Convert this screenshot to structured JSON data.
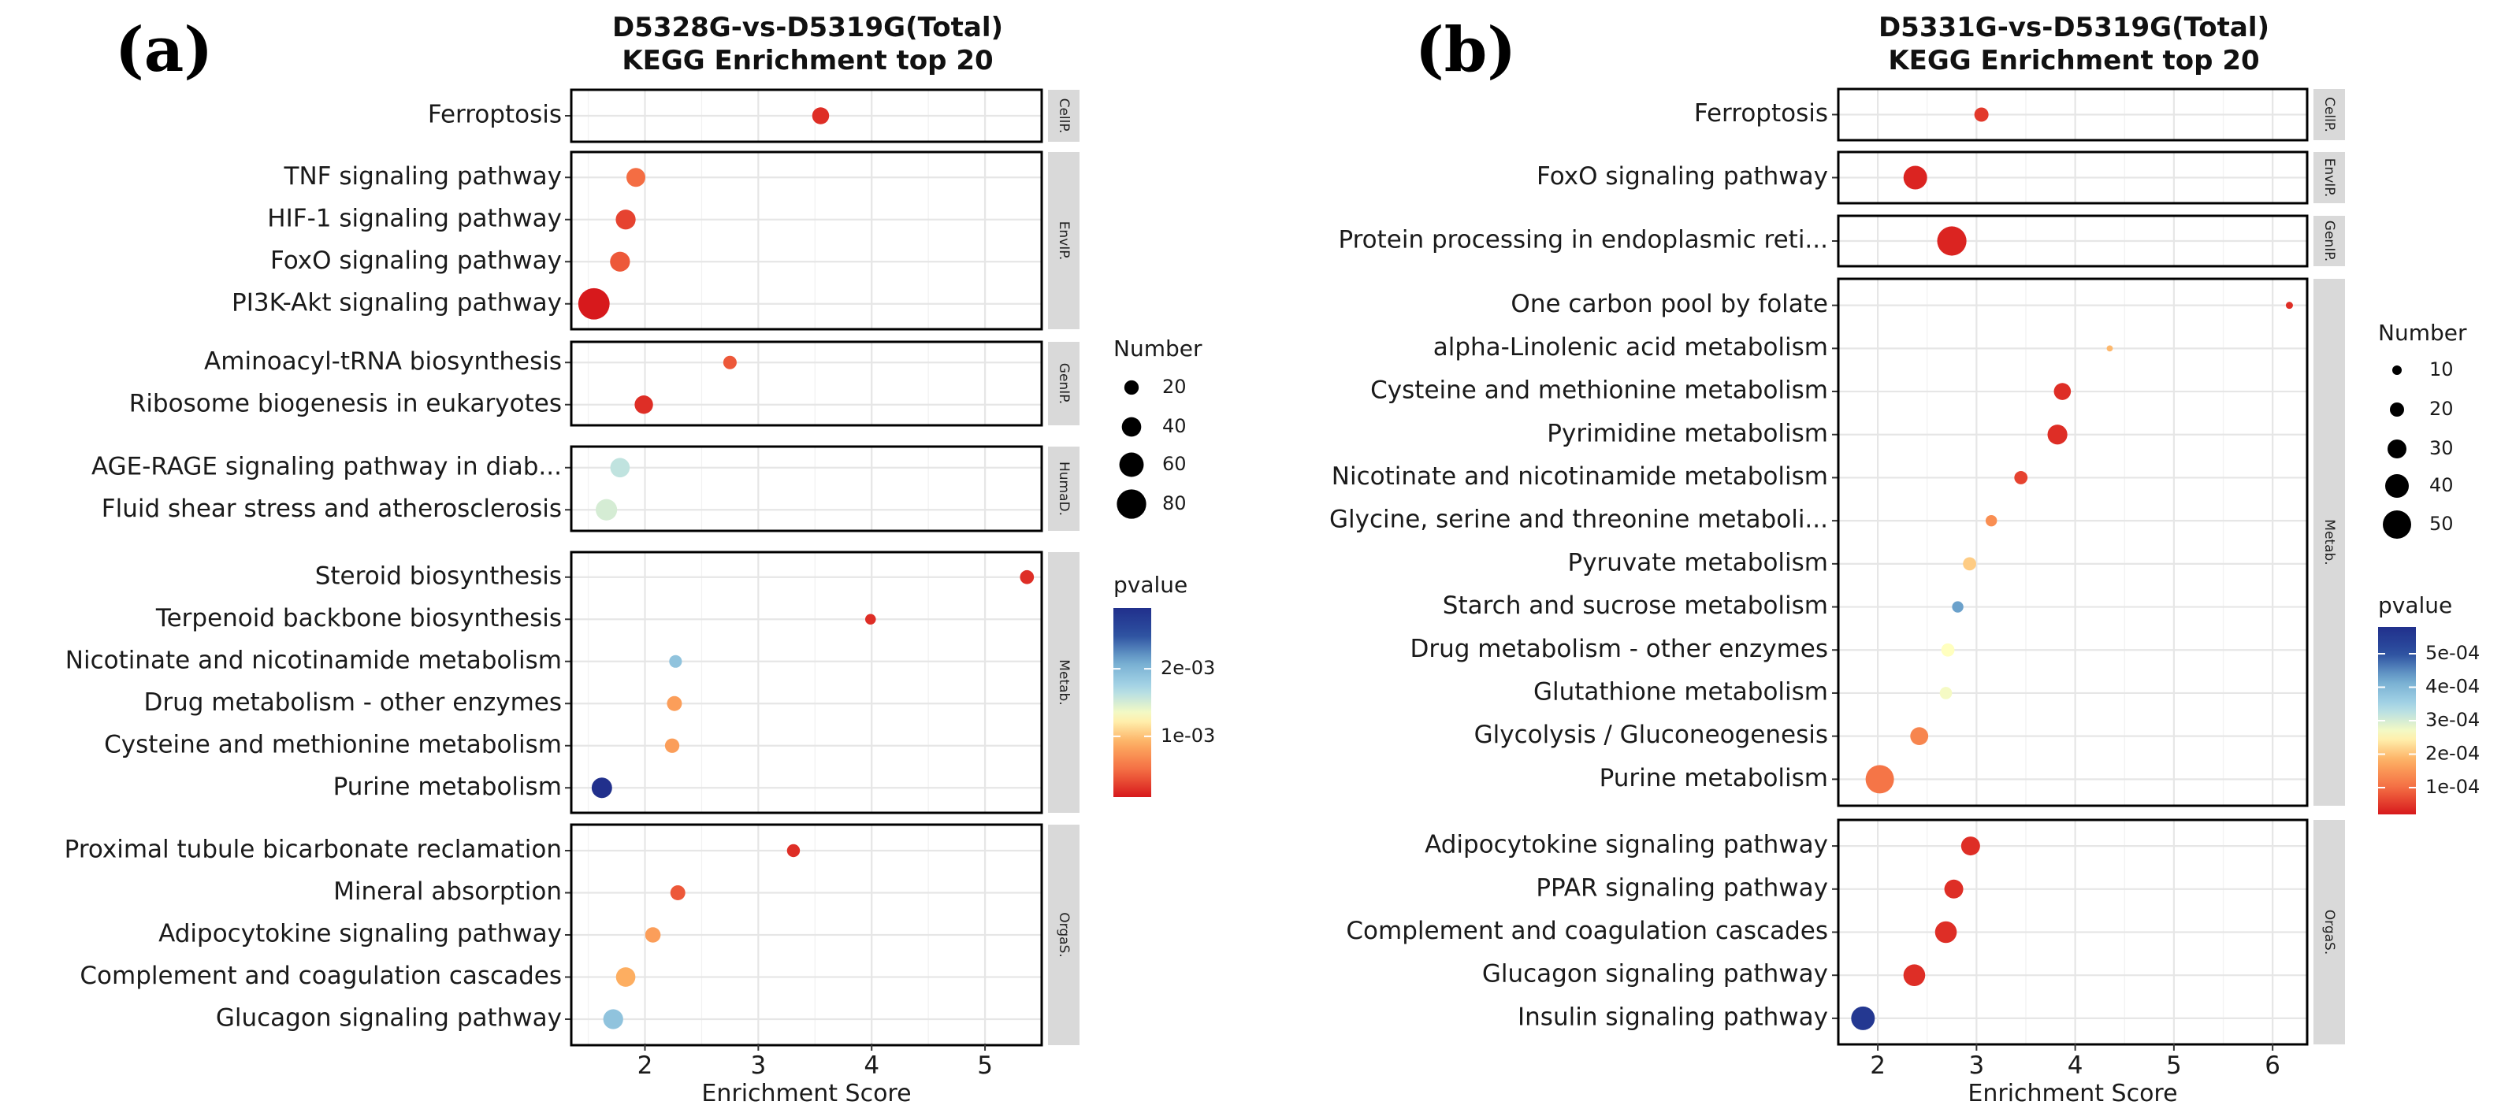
{
  "chart_data": [
    {
      "type": "scatter",
      "panel_label": "(a)",
      "title_line1": "D5328G-vs-D5319G(Total)",
      "title_line2": "KEGG Enrichment top 20",
      "xlabel": "Enrichment Score",
      "xlim": [
        1.35,
        5.5
      ],
      "xticks": [
        2,
        3,
        4,
        5
      ],
      "size_legend_title": "Number",
      "size_legend_values": [
        20,
        40,
        60,
        80
      ],
      "color_legend_title": "pvalue",
      "color_legend_ticks": [
        {
          "value": 0.002,
          "label": "2e-03"
        },
        {
          "value": 0.001,
          "label": "1e-03"
        }
      ],
      "pvalue_range": [
        0.0001,
        0.0029
      ],
      "size_range": [
        5,
        90
      ],
      "groups": [
        {
          "name": "CellP.",
          "terms": [
            {
              "term": "Ferroptosis",
              "x": 3.55,
              "number": 30,
              "pvalue": 0.0002
            }
          ]
        },
        {
          "name": "EnvIP.",
          "terms": [
            {
              "term": "TNF signaling pathway",
              "x": 1.92,
              "number": 38,
              "pvalue": 0.0005
            },
            {
              "term": "HIF-1 signaling pathway",
              "x": 1.83,
              "number": 42,
              "pvalue": 0.0003
            },
            {
              "term": "FoxO signaling pathway",
              "x": 1.78,
              "number": 42,
              "pvalue": 0.0004
            },
            {
              "term": "PI3K-Akt signaling pathway",
              "x": 1.55,
              "number": 88,
              "pvalue": 0.0001
            }
          ]
        },
        {
          "name": "GenIP.",
          "terms": [
            {
              "term": "Aminoacyl-tRNA biosynthesis",
              "x": 2.75,
              "number": 16,
              "pvalue": 0.0004
            },
            {
              "term": "Ribosome biogenesis in eukaryotes",
              "x": 1.99,
              "number": 36,
              "pvalue": 0.0002
            }
          ]
        },
        {
          "name": "HumaD.",
          "terms": [
            {
              "term": "AGE-RAGE signaling pathway in diab...",
              "x": 1.78,
              "number": 40,
              "pvalue": 0.0016
            },
            {
              "term": "Fluid shear stress and atherosclerosis",
              "x": 1.66,
              "number": 48,
              "pvalue": 0.0015
            }
          ]
        },
        {
          "name": "Metab.",
          "terms": [
            {
              "term": "Steroid biosynthesis",
              "x": 5.37,
              "number": 18,
              "pvalue": 0.0002
            },
            {
              "term": "Terpenoid backbone biosynthesis",
              "x": 3.99,
              "number": 5,
              "pvalue": 0.0002
            },
            {
              "term": "Nicotinate and nicotinamide metabolism",
              "x": 2.27,
              "number": 13,
              "pvalue": 0.0019
            },
            {
              "term": "Drug metabolism - other enzymes",
              "x": 2.26,
              "number": 22,
              "pvalue": 0.0008
            },
            {
              "term": "Cysteine and methionine metabolism",
              "x": 2.24,
              "number": 20,
              "pvalue": 0.0008
            },
            {
              "term": "Purine metabolism",
              "x": 1.62,
              "number": 44,
              "pvalue": 0.0029
            }
          ]
        },
        {
          "name": "OrgaS.",
          "terms": [
            {
              "term": "Proximal tubule bicarbonate reclamation",
              "x": 3.31,
              "number": 14,
              "pvalue": 0.0002
            },
            {
              "term": "Mineral absorption",
              "x": 2.29,
              "number": 22,
              "pvalue": 0.0004
            },
            {
              "term": "Adipocytokine signaling pathway",
              "x": 2.07,
              "number": 24,
              "pvalue": 0.0008
            },
            {
              "term": "Complement and coagulation cascades",
              "x": 1.83,
              "number": 40,
              "pvalue": 0.0009
            },
            {
              "term": "Glucagon signaling pathway",
              "x": 1.72,
              "number": 42,
              "pvalue": 0.0019
            }
          ]
        }
      ]
    },
    {
      "type": "scatter",
      "panel_label": "(b)",
      "title_line1": "D5331G-vs-D5319G(Total)",
      "title_line2": "KEGG Enrichment top 20",
      "xlabel": "Enrichment Score",
      "xlim": [
        1.6,
        6.35
      ],
      "xticks": [
        2,
        3,
        4,
        5,
        6
      ],
      "size_legend_title": "Number",
      "size_legend_values": [
        10,
        20,
        30,
        40,
        50
      ],
      "color_legend_title": "pvalue",
      "color_legend_ticks": [
        {
          "value": 0.0005,
          "label": "5e-04"
        },
        {
          "value": 0.0004,
          "label": "4e-04"
        },
        {
          "value": 0.0003,
          "label": "3e-04"
        },
        {
          "value": 0.0002,
          "label": "2e-04"
        },
        {
          "value": 0.0001,
          "label": "1e-04"
        }
      ],
      "pvalue_range": [
        2e-05,
        0.00058
      ],
      "size_range": [
        3,
        55
      ],
      "groups": [
        {
          "name": "CellP.",
          "terms": [
            {
              "term": "Ferroptosis",
              "x": 3.05,
              "number": 20,
              "pvalue": 5e-05
            }
          ]
        },
        {
          "name": "EnvIP.",
          "terms": [
            {
              "term": "FoxO signaling pathway",
              "x": 2.38,
              "number": 40,
              "pvalue": 3e-05
            }
          ]
        },
        {
          "name": "GenIP.",
          "terms": [
            {
              "term": "Protein processing in endoplasmic reti...",
              "x": 2.75,
              "number": 52,
              "pvalue": 3e-05
            }
          ]
        },
        {
          "name": "Metab.",
          "terms": [
            {
              "term": "One carbon pool by folate",
              "x": 6.17,
              "number": 5,
              "pvalue": 4e-05
            },
            {
              "term": "alpha-Linolenic acid metabolism",
              "x": 4.35,
              "number": 3,
              "pvalue": 0.00019
            },
            {
              "term": "Cysteine and methionine metabolism",
              "x": 3.87,
              "number": 26,
              "pvalue": 4e-05
            },
            {
              "term": "Pyrimidine metabolism",
              "x": 3.82,
              "number": 32,
              "pvalue": 4e-05
            },
            {
              "term": "Nicotinate and nicotinamide metabolism",
              "x": 3.45,
              "number": 18,
              "pvalue": 6e-05
            },
            {
              "term": "Glycine, serine and threonine metaboli...",
              "x": 3.15,
              "number": 14,
              "pvalue": 0.00014
            },
            {
              "term": "Pyruvate metabolism",
              "x": 2.93,
              "number": 18,
              "pvalue": 0.00021
            },
            {
              "term": "Starch and sucrose metabolism",
              "x": 2.81,
              "number": 14,
              "pvalue": 0.00043
            },
            {
              "term": "Drug metabolism - other enzymes",
              "x": 2.71,
              "number": 18,
              "pvalue": 0.00026
            },
            {
              "term": "Glutathione metabolism",
              "x": 2.69,
              "number": 16,
              "pvalue": 0.00027
            },
            {
              "term": "Glycolysis / Gluconeogenesis",
              "x": 2.42,
              "number": 28,
              "pvalue": 0.00013
            },
            {
              "term": "Purine metabolism",
              "x": 2.02,
              "number": 50,
              "pvalue": 0.00011
            }
          ]
        },
        {
          "name": "OrgaS.",
          "terms": [
            {
              "term": "Adipocytokine signaling pathway",
              "x": 2.94,
              "number": 30,
              "pvalue": 4e-05
            },
            {
              "term": "PPAR signaling pathway",
              "x": 2.77,
              "number": 30,
              "pvalue": 4e-05
            },
            {
              "term": "Complement and coagulation cascades",
              "x": 2.69,
              "number": 36,
              "pvalue": 4e-05
            },
            {
              "term": "Glucagon signaling pathway",
              "x": 2.37,
              "number": 36,
              "pvalue": 4e-05
            },
            {
              "term": "Insulin signaling pathway",
              "x": 1.85,
              "number": 40,
              "pvalue": 0.00056
            }
          ]
        }
      ]
    }
  ]
}
